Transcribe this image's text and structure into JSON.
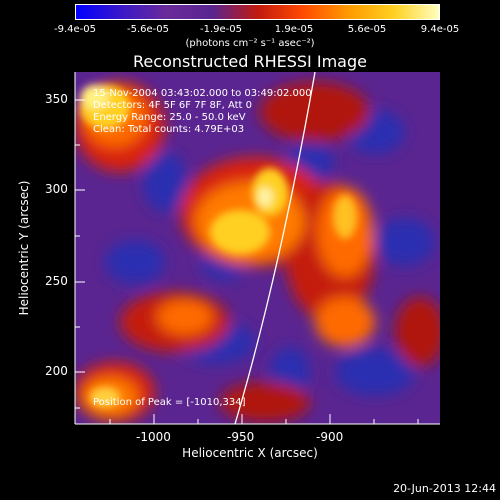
{
  "colorbar": {
    "tick_labels": [
      "-9.4e-05",
      "-5.6e-05",
      "-1.9e-05",
      "1.9e-05",
      "5.6e-05",
      "9.4e-05"
    ],
    "units": "(photons cm⁻² s⁻¹ asec⁻²)",
    "range": [
      -9.4e-05,
      9.4e-05
    ]
  },
  "title": "Reconstructed RHESSI Image",
  "annotations": {
    "time": "15-Nov-2004 03:43:02.000 to 03:49:02.000",
    "detectors": "Detectors: 4F 5F 6F 7F 8F, Att 0",
    "energy": "Energy Range: 25.0 - 50.0 keV",
    "clean": "Clean: Total counts: 4.79E+03",
    "peak": "Position of Peak = [-1010,334]"
  },
  "axes": {
    "xlabel": "Heliocentric X (arcsec)",
    "ylabel": "Heliocentric Y (arcsec)",
    "x_ticks": [
      "-1000",
      "-950",
      "-900"
    ],
    "y_ticks": [
      "350",
      "300",
      "250",
      "200"
    ],
    "xlim": [
      -1045,
      -944
    ],
    "ylim": [
      170,
      367
    ]
  },
  "footer": "20-Jun-2013 12:44"
}
